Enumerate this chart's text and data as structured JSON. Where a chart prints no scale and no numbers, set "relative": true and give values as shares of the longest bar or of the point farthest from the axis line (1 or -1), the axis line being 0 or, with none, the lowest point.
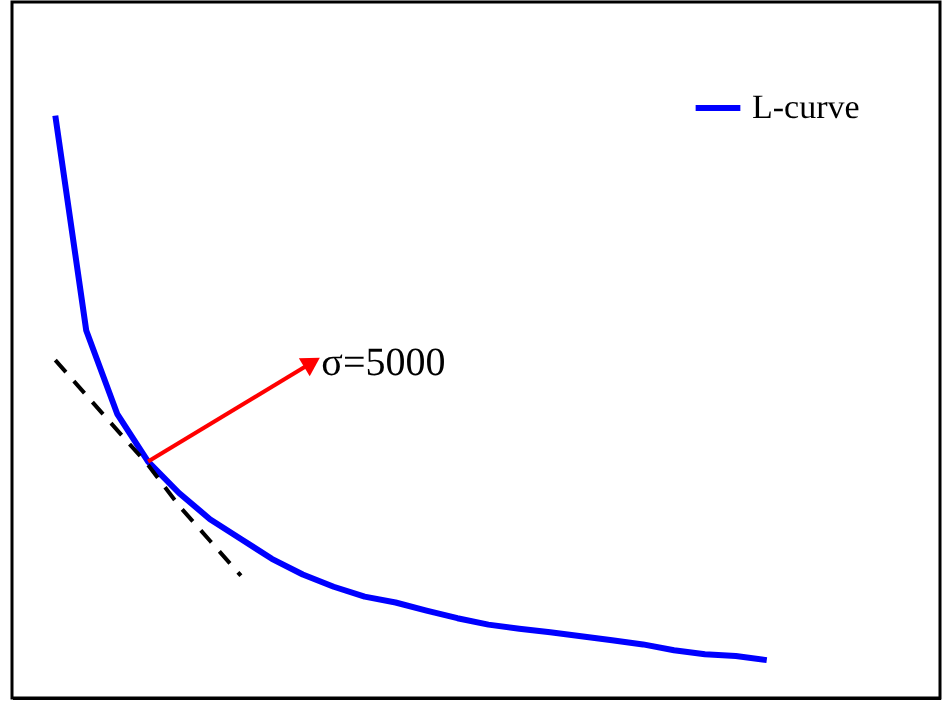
{
  "chart_data": {
    "type": "line",
    "relative": true,
    "legend": "top right",
    "categories": [
      null,
      null,
      null,
      null,
      null,
      null,
      null,
      null,
      null,
      null,
      null,
      null,
      null,
      null,
      null,
      null,
      null,
      null,
      null,
      null,
      null,
      null,
      null,
      null
    ],
    "series": [
      {
        "name": "L-curve",
        "color": "#0000ff",
        "line_style": "solid",
        "values": [
          1.0,
          0.631,
          0.488,
          0.406,
          0.352,
          0.307,
          0.273,
          0.239,
          0.212,
          0.191,
          0.174,
          0.164,
          0.15,
          0.137,
          0.126,
          0.119,
          0.113,
          0.106,
          0.099,
          0.092,
          0.082,
          0.075,
          0.072,
          0.065
        ]
      },
      {
        "color": "#000000",
        "line_style": "dashed",
        "values": [
          0.58,
          0.52,
          0.46,
          0.4,
          0.33,
          0.27,
          0.21,
          null,
          null,
          null,
          null,
          null,
          null,
          null,
          null,
          null,
          null,
          null,
          null,
          null,
          null,
          null,
          null,
          null
        ]
      }
    ],
    "annotations": [
      "σ=5000"
    ]
  }
}
